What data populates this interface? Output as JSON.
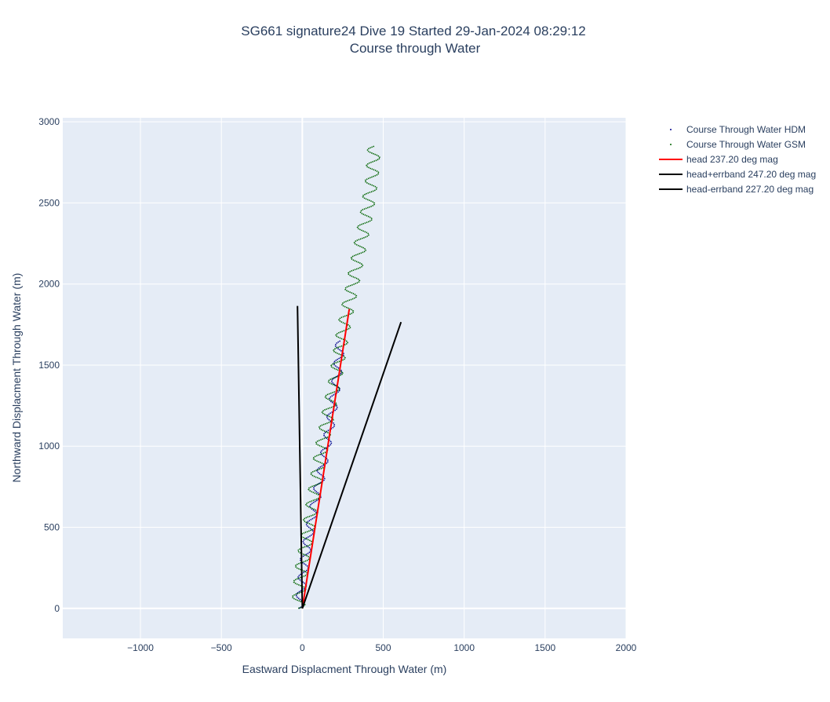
{
  "title_line1": "SG661 signature24 Dive 19 Started 29-Jan-2024 08:29:12",
  "title_line2": "Course through Water",
  "chart_data": {
    "type": "line",
    "xlabel": "Eastward Displacment Through Water (m)",
    "ylabel": "Northward Displacment Through Water (m)",
    "xlim": [
      -1480,
      2000
    ],
    "ylim": [
      -185,
      3025
    ],
    "xticks": [
      -1000,
      -500,
      0,
      500,
      1000,
      1500,
      2000
    ],
    "xtick_labels": [
      "−1000",
      "−500",
      "0",
      "500",
      "1000",
      "1500",
      "2000"
    ],
    "yticks": [
      0,
      500,
      1000,
      1500,
      2000,
      2500,
      3000
    ],
    "ytick_labels": [
      "0",
      "500",
      "1000",
      "1500",
      "2000",
      "2500",
      "3000"
    ],
    "grid": true,
    "legend_position": "top-right",
    "colors": {
      "plot_bg": "#e5ecf6",
      "grid": "#ffffff",
      "text": "#2a3f5f"
    },
    "series": [
      {
        "name": "Course Through Water HDM",
        "color": "#00008b",
        "style": "markers",
        "wiggle": 28,
        "wiggle_period": 110,
        "points": [
          [
            -20,
            0
          ],
          [
            -10,
            80
          ],
          [
            0,
            170
          ],
          [
            15,
            300
          ],
          [
            40,
            460
          ],
          [
            75,
            630
          ],
          [
            110,
            800
          ],
          [
            145,
            980
          ],
          [
            180,
            1180
          ],
          [
            205,
            1360
          ],
          [
            225,
            1540
          ],
          [
            235,
            1650
          ]
        ]
      },
      {
        "name": "Course Through Water GSM",
        "color": "#006400",
        "style": "markers",
        "wiggle": 40,
        "wiggle_period": 95,
        "points": [
          [
            -25,
            0
          ],
          [
            -20,
            100
          ],
          [
            -5,
            250
          ],
          [
            40,
            500
          ],
          [
            80,
            750
          ],
          [
            120,
            1000
          ],
          [
            160,
            1200
          ],
          [
            210,
            1450
          ],
          [
            250,
            1700
          ],
          [
            300,
            1950
          ],
          [
            350,
            2200
          ],
          [
            400,
            2450
          ],
          [
            430,
            2650
          ],
          [
            445,
            2850
          ]
        ]
      },
      {
        "name": "head 237.20 deg mag",
        "color": "#ff0000",
        "style": "line",
        "points": [
          [
            0,
            0
          ],
          [
            290,
            1845
          ]
        ]
      },
      {
        "name": "head+errband 247.20 deg mag",
        "color": "#000000",
        "style": "line",
        "points": [
          [
            0,
            0
          ],
          [
            610,
            1765
          ]
        ]
      },
      {
        "name": "head-errband 227.20 deg mag",
        "color": "#000000",
        "style": "line",
        "points": [
          [
            0,
            0
          ],
          [
            -30,
            1865
          ]
        ]
      }
    ]
  }
}
